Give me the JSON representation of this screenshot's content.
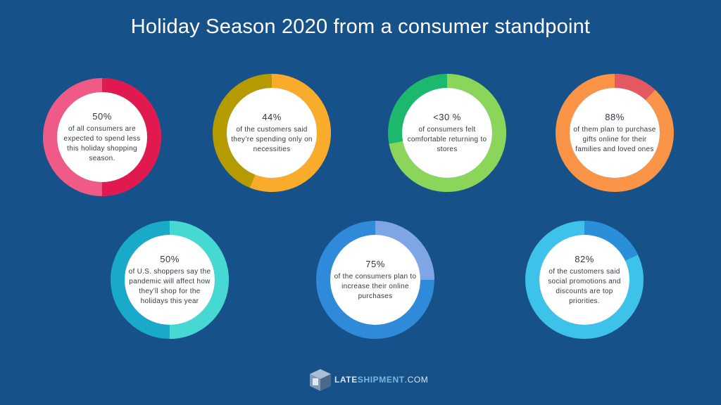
{
  "title": "Holiday Season 2020 from a consumer standpoint",
  "stats": [
    {
      "percent": "50%",
      "description": "of all consumers are expected to spend less this holiday shopping season.",
      "value": 0.5,
      "colors": {
        "main": "#ef5a86",
        "highlight": "#e01a4f"
      }
    },
    {
      "percent": "44%",
      "description": "of the customers said they’re spending only on necessities",
      "value": 0.44,
      "colors": {
        "main": "#b59b00",
        "highlight": "#f9ac2b"
      }
    },
    {
      "percent": "<30 %",
      "description": "of consumers felt comfortable returning to stores",
      "value": 0.28,
      "colors": {
        "main": "#1bb86e",
        "highlight": "#8bd65a"
      }
    },
    {
      "percent": "88%",
      "description": "of them plan to purchase gifts online for their families and loved ones",
      "value": 0.88,
      "colors": {
        "main": "#fc9447",
        "highlight": "#e4585f"
      }
    },
    {
      "percent": "50%",
      "description": "of U.S. shoppers say the pandemic will affect how they’ll shop for the holidays this year",
      "value": 0.5,
      "colors": {
        "main": "#19a9c9",
        "highlight": "#46d8d2"
      }
    },
    {
      "percent": "75%",
      "description": "of the consumers plan to increase their online purchases",
      "value": 0.75,
      "colors": {
        "main": "#2f8ad9",
        "highlight": "#7ea5e6"
      }
    },
    {
      "percent": "82%",
      "description": "of the customers said social promotions and discounts are top priorities.",
      "value": 0.82,
      "colors": {
        "main": "#3dc3ea",
        "highlight": "#2a8fd8"
      }
    }
  ],
  "logo": {
    "part1": "LATE",
    "part2": "SHIPMENT",
    "part3": ".COM",
    "icon": "box-icon"
  }
}
